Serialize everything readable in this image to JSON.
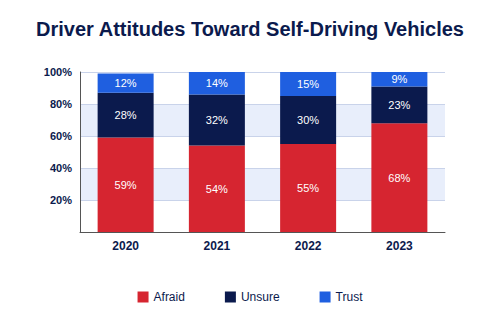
{
  "chart_data": {
    "type": "bar",
    "title": "Driver Attitudes Toward Self-Driving Vehicles",
    "categories": [
      "2020",
      "2021",
      "2022",
      "2023"
    ],
    "series": [
      {
        "name": "Afraid",
        "color": "#d62530",
        "values": [
          59,
          54,
          55,
          68
        ],
        "value_labels": [
          "59%",
          "54%",
          "55%",
          "68%"
        ]
      },
      {
        "name": "Unsure",
        "color": "#0b1a4d",
        "values": [
          28,
          32,
          30,
          23
        ],
        "value_labels": [
          "28%",
          "32%",
          "30%",
          "23%"
        ]
      },
      {
        "name": "Trust",
        "color": "#1f5fe0",
        "values": [
          12,
          14,
          15,
          9
        ],
        "value_labels": [
          "12%",
          "14%",
          "15%",
          "9%"
        ]
      }
    ],
    "stacked": true,
    "data_labels": true,
    "ylim": [
      0,
      100
    ],
    "yticks": [
      {
        "value": 20,
        "label": "20%"
      },
      {
        "value": 40,
        "label": "40%"
      },
      {
        "value": 60,
        "label": "60%"
      },
      {
        "value": 80,
        "label": "80%"
      },
      {
        "value": 100,
        "label": "100%"
      }
    ],
    "grid": true,
    "legend": "bottom"
  }
}
